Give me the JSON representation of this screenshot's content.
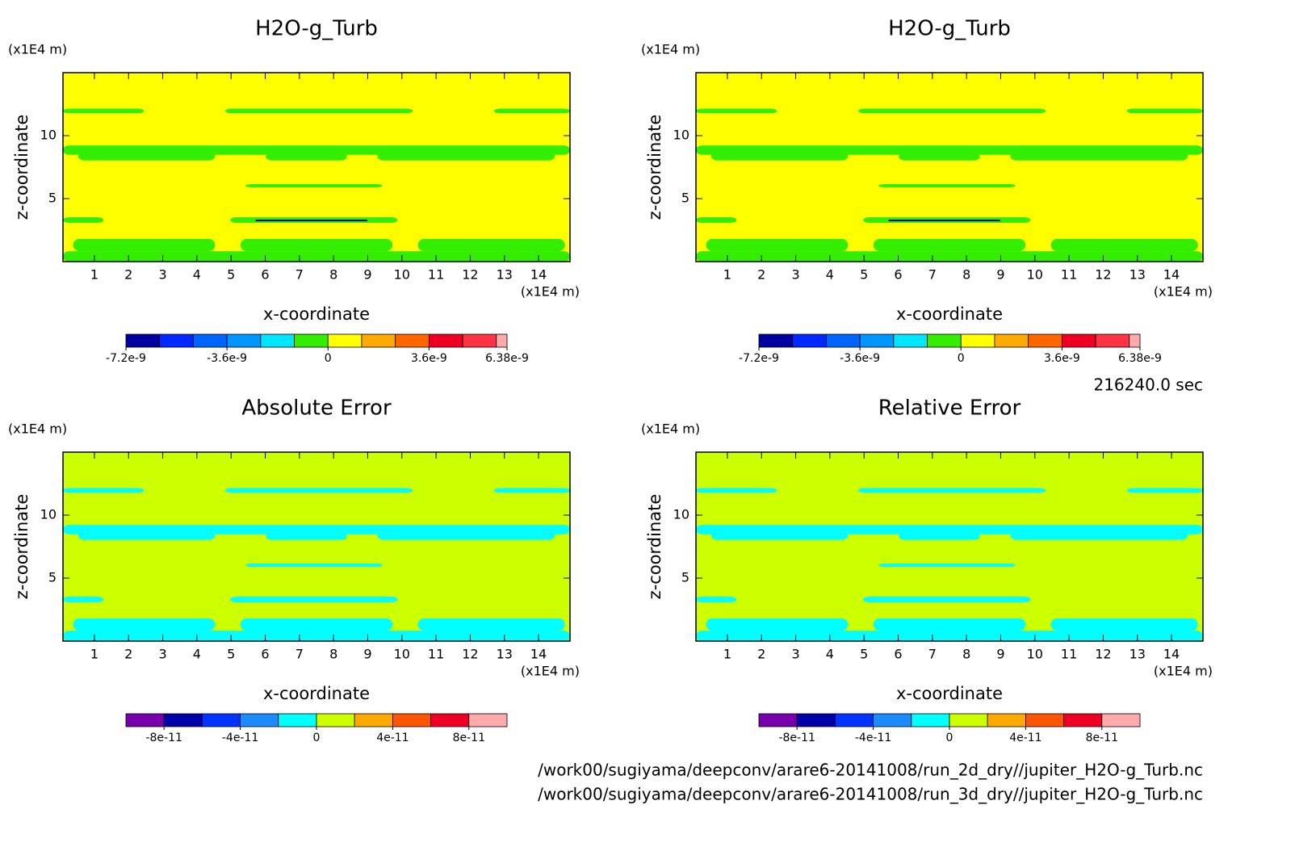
{
  "chart_data": [
    {
      "type": "contour",
      "title": "H2O-g_Turb",
      "xlabel": "x-coordinate",
      "ylabel": "z-coordinate",
      "xunit": "(x1E4 m)",
      "yunit": "(x1E4 m)",
      "xlim": [
        0.08,
        14.92
      ],
      "ylim": [
        0,
        15
      ],
      "xticks": [
        1,
        2,
        3,
        4,
        5,
        6,
        7,
        8,
        9,
        10,
        11,
        12,
        13,
        14
      ],
      "yticks": [
        5,
        10
      ],
      "colorbar": {
        "levels": [
          -7.2e-09,
          -6e-09,
          -4.8e-09,
          -3.6e-09,
          -2.4e-09,
          -1.2e-09,
          0,
          1.2e-09,
          2.4e-09,
          3.6e-09,
          4.8e-09,
          6e-09,
          6.38e-09
        ],
        "colors": [
          "#0000a0",
          "#0028ff",
          "#0064ff",
          "#0096ff",
          "#00e6ff",
          "#33ee00",
          "#ffff00",
          "#ffaa00",
          "#ff6600",
          "#ee0022",
          "#ff3344",
          "#ffaaaa"
        ],
        "ticks": [
          -7.2e-09,
          -3.6e-09,
          0,
          3.6e-09,
          6.38e-09
        ]
      }
    },
    {
      "type": "contour",
      "title": "H2O-g_Turb",
      "xlabel": "x-coordinate",
      "ylabel": "z-coordinate",
      "xunit": "(x1E4 m)",
      "yunit": "(x1E4 m)",
      "xlim": [
        0.08,
        14.92
      ],
      "ylim": [
        0,
        15
      ],
      "xticks": [
        1,
        2,
        3,
        4,
        5,
        6,
        7,
        8,
        9,
        10,
        11,
        12,
        13,
        14
      ],
      "yticks": [
        5,
        10
      ],
      "colorbar": {
        "levels": [
          -7.2e-09,
          -6e-09,
          -4.8e-09,
          -3.6e-09,
          -2.4e-09,
          -1.2e-09,
          0,
          1.2e-09,
          2.4e-09,
          3.6e-09,
          4.8e-09,
          6e-09,
          6.38e-09
        ],
        "colors": [
          "#0000a0",
          "#0028ff",
          "#0064ff",
          "#0096ff",
          "#00e6ff",
          "#33ee00",
          "#ffff00",
          "#ffaa00",
          "#ff6600",
          "#ee0022",
          "#ff3344",
          "#ffaaaa"
        ],
        "ticks": [
          -7.2e-09,
          -3.6e-09,
          0,
          3.6e-09,
          6.38e-09
        ]
      }
    },
    {
      "type": "contour",
      "title": "Absolute Error",
      "xlabel": "x-coordinate",
      "ylabel": "z-coordinate",
      "xunit": "(x1E4 m)",
      "yunit": "(x1E4 m)",
      "xlim": [
        0.08,
        14.92
      ],
      "ylim": [
        0,
        15
      ],
      "xticks": [
        1,
        2,
        3,
        4,
        5,
        6,
        7,
        8,
        9,
        10,
        11,
        12,
        13,
        14
      ],
      "yticks": [
        5,
        10
      ],
      "colorbar": {
        "levels": [
          -1e-10,
          -8e-11,
          -6e-11,
          -4e-11,
          -2e-11,
          0,
          2e-11,
          4e-11,
          6e-11,
          8e-11,
          1e-10
        ],
        "colors": [
          "#7700aa",
          "#0000aa",
          "#0033ff",
          "#1a8cff",
          "#00ffff",
          "#ccff00",
          "#ffaa00",
          "#ff5500",
          "#ee0022",
          "#ffaaaa"
        ],
        "ticks": [
          -8e-11,
          -4e-11,
          0,
          4e-11,
          8e-11
        ]
      }
    },
    {
      "type": "contour",
      "title": "Relative Error",
      "xlabel": "x-coordinate",
      "ylabel": "z-coordinate",
      "xunit": "(x1E4 m)",
      "yunit": "(x1E4 m)",
      "xlim": [
        0.08,
        14.92
      ],
      "ylim": [
        0,
        15
      ],
      "xticks": [
        1,
        2,
        3,
        4,
        5,
        6,
        7,
        8,
        9,
        10,
        11,
        12,
        13,
        14
      ],
      "yticks": [
        5,
        10
      ],
      "colorbar": {
        "levels": [
          -1e-10,
          -8e-11,
          -6e-11,
          -4e-11,
          -2e-11,
          0,
          2e-11,
          4e-11,
          6e-11,
          8e-11,
          1e-10
        ],
        "colors": [
          "#7700aa",
          "#0000aa",
          "#0033ff",
          "#1a8cff",
          "#00ffff",
          "#ccff00",
          "#ffaa00",
          "#ff5500",
          "#ee0022",
          "#ffaaaa"
        ],
        "ticks": [
          -8e-11,
          -4e-11,
          0,
          4e-11,
          8e-11
        ]
      }
    }
  ],
  "time_label": "216240.0 sec",
  "files": [
    "/work00/sugiyama/deepconv/arare6-20141008/run_2d_dry//jupiter_H2O-g_Turb.nc",
    "/work00/sugiyama/deepconv/arare6-20141008/run_3d_dry//jupiter_H2O-g_Turb.nc"
  ]
}
